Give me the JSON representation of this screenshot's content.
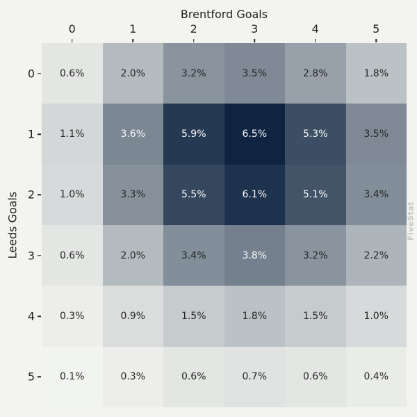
{
  "labels": {
    "x_axis_title": "Brentford Goals",
    "y_axis_title": "Leeds Goals",
    "watermark": "FiveStat"
  },
  "colors": {
    "background": "#f3f4ef",
    "axis_text": "#262626",
    "tick_mark": "#262626",
    "watermark": "#c4c6c3",
    "cell_text_dark": "#262626",
    "cell_text_light": "#fafafa"
  },
  "chart_data": {
    "type": "heatmap",
    "title": "Brentford Goals",
    "xlabel": "Brentford Goals",
    "ylabel": "Leeds Goals",
    "x_ticks": [
      "0",
      "1",
      "2",
      "3",
      "4",
      "5"
    ],
    "y_ticks": [
      "0",
      "1",
      "2",
      "3",
      "4",
      "5"
    ],
    "values_percent": [
      [
        0.6,
        2.0,
        3.2,
        3.5,
        2.8,
        1.8
      ],
      [
        1.1,
        3.6,
        5.9,
        6.5,
        5.3,
        3.5
      ],
      [
        1.0,
        3.3,
        5.5,
        6.1,
        5.1,
        3.4
      ],
      [
        0.6,
        2.0,
        3.4,
        3.8,
        3.2,
        2.2
      ],
      [
        0.3,
        0.9,
        1.5,
        1.8,
        1.5,
        1.0
      ],
      [
        0.1,
        0.3,
        0.6,
        0.7,
        0.6,
        0.4
      ]
    ],
    "cell_label_suffix": "%",
    "colormap": {
      "vmin": 0,
      "vmax": 6.5,
      "gamma": 1.08,
      "min_color": "#f5f6f1",
      "max_color": "#0e2440",
      "white_text_threshold": 3.6
    },
    "legend": "none",
    "grid": "off"
  }
}
